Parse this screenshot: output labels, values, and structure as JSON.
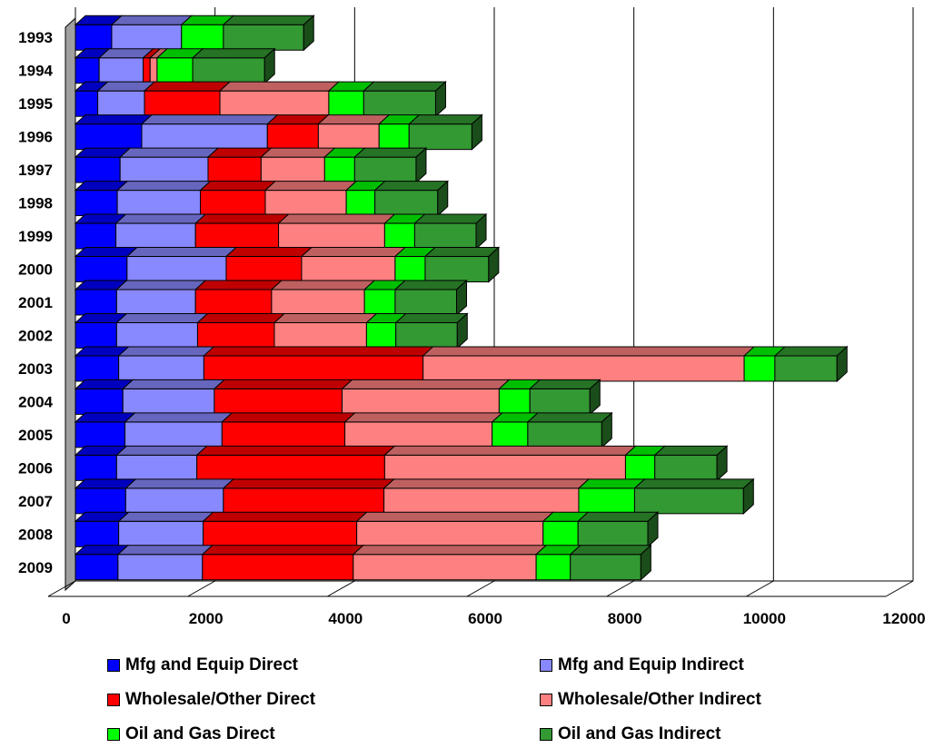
{
  "chart_data": {
    "type": "bar",
    "orientation": "horizontal",
    "stacked": true,
    "three_d": true,
    "categories": [
      "1993",
      "1994",
      "1995",
      "1996",
      "1997",
      "1998",
      "1999",
      "2000",
      "2001",
      "2002",
      "2003",
      "2004",
      "2005",
      "2006",
      "2007",
      "2008",
      "2009"
    ],
    "series": [
      {
        "name": "Mfg and Equip Direct",
        "color": "#0000FF",
        "values": [
          520,
          340,
          320,
          950,
          640,
          600,
          580,
          740,
          590,
          590,
          620,
          680,
          710,
          590,
          720,
          620,
          610
        ]
      },
      {
        "name": "Mfg and Equip Indirect",
        "color": "#8888FF",
        "values": [
          1000,
          630,
          670,
          1800,
          1260,
          1190,
          1140,
          1420,
          1130,
          1160,
          1220,
          1310,
          1390,
          1150,
          1400,
          1210,
          1210
        ]
      },
      {
        "name": "Wholesale/Other Direct",
        "color": "#FF0000",
        "values": [
          0,
          100,
          1080,
          730,
          760,
          930,
          1190,
          1080,
          1090,
          1100,
          3140,
          1830,
          1760,
          2690,
          2300,
          2200,
          2160
        ]
      },
      {
        "name": "Wholesale/Other Indirect",
        "color": "#FF8080",
        "values": [
          0,
          100,
          1560,
          870,
          910,
          1160,
          1520,
          1340,
          1330,
          1320,
          4600,
          2250,
          2110,
          3450,
          2790,
          2670,
          2620
        ]
      },
      {
        "name": "Oil and Gas Direct",
        "color": "#00FF00",
        "values": [
          600,
          510,
          500,
          430,
          430,
          410,
          430,
          430,
          440,
          420,
          440,
          440,
          510,
          420,
          800,
          500,
          490
        ]
      },
      {
        "name": "Oil and Gas Indirect",
        "color": "#339933",
        "values": [
          1150,
          1030,
          1030,
          900,
          880,
          900,
          880,
          910,
          880,
          880,
          890,
          860,
          1060,
          890,
          1560,
          1000,
          1010
        ]
      }
    ],
    "xlim": [
      0,
      12000
    ],
    "xticks": [
      "0",
      "2000",
      "4000",
      "6000",
      "8000",
      "10000",
      "12000"
    ],
    "grid": true,
    "legend_position": "bottom"
  }
}
